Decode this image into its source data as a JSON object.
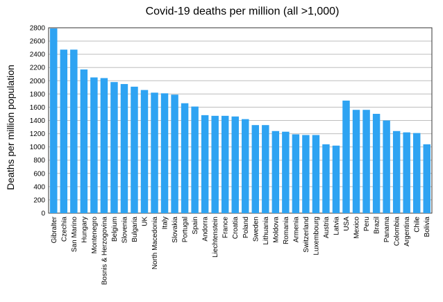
{
  "chart_data": {
    "type": "bar",
    "title": "Covid-19 deaths per million (all >1,000)",
    "xlabel": "",
    "ylabel": "Deaths per million population",
    "ylim": [
      0,
      2800
    ],
    "yticks": [
      0,
      200,
      400,
      600,
      800,
      1000,
      1200,
      1400,
      1600,
      1800,
      2000,
      2200,
      2400,
      2600,
      2800
    ],
    "grid": true,
    "bar_color": "#2ea3f2",
    "categories": [
      "Gibralter",
      "Czechia",
      "San Marino",
      "Hungary",
      "Montenegro",
      "Bosnis & Herzogovina",
      "Belgium",
      "Slovenia",
      "Bulgaria",
      "UK",
      "North Macedonia",
      "Italy",
      "Slovakia",
      "Portugal",
      "Spain",
      "Andorra",
      "Liechtenstein",
      "France",
      "Croatia",
      "Poland",
      "Sweden",
      "Lithuania",
      "Moldova",
      "Romania",
      "Armenia",
      "Switzerland",
      "Luxembourg",
      "Austria",
      "Latvia",
      "USA",
      "Mexico",
      "Peru",
      "Brazil",
      "Panama",
      "Colombia",
      "Argentina",
      "Chile",
      "Bolivia"
    ],
    "values": [
      2790,
      2470,
      2470,
      2170,
      2050,
      2040,
      1980,
      1950,
      1910,
      1860,
      1820,
      1810,
      1790,
      1660,
      1610,
      1480,
      1470,
      1470,
      1460,
      1420,
      1330,
      1330,
      1240,
      1230,
      1190,
      1180,
      1180,
      1040,
      1020,
      1700,
      1560,
      1560,
      1500,
      1400,
      1240,
      1220,
      1210,
      1040
    ]
  }
}
